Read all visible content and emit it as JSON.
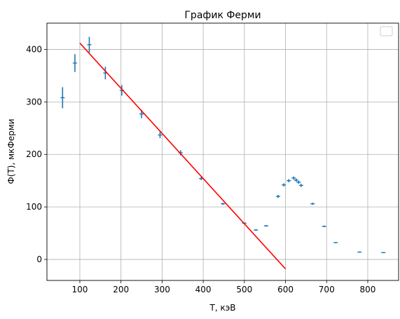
{
  "chart_data": {
    "type": "scatter",
    "title": "График Ферми",
    "xlabel": "T, кэВ",
    "ylabel": "Ф(T), мкФерми",
    "xlim": [
      20,
      875
    ],
    "ylim": [
      -40,
      450
    ],
    "xticks": [
      100,
      200,
      300,
      400,
      500,
      600,
      700,
      800
    ],
    "yticks": [
      0,
      100,
      200,
      300,
      400
    ],
    "grid": true,
    "legend": {
      "placement": "top-right",
      "entries": []
    },
    "series": [
      {
        "kind": "errorbar",
        "color": "#1f77b4",
        "points": [
          {
            "x": 58,
            "y": 308,
            "yerr": 20
          },
          {
            "x": 88,
            "y": 374,
            "yerr": 17
          },
          {
            "x": 123,
            "y": 409,
            "yerr": 15
          },
          {
            "x": 162,
            "y": 355,
            "yerr": 12
          },
          {
            "x": 202,
            "y": 322,
            "yerr": 10
          },
          {
            "x": 250,
            "y": 277,
            "yerr": 8
          },
          {
            "x": 295,
            "y": 237,
            "yerr": 6
          },
          {
            "x": 345,
            "y": 203,
            "yerr": 5
          },
          {
            "x": 395,
            "y": 154,
            "yerr": 3
          },
          {
            "x": 448,
            "y": 106,
            "yerr": 2
          },
          {
            "x": 500,
            "y": 69,
            "yerr": 1.5
          },
          {
            "x": 528,
            "y": 56,
            "yerr": 1.5
          },
          {
            "x": 553,
            "y": 64,
            "yerr": 1.5
          },
          {
            "x": 582,
            "y": 120,
            "yerr": 3
          },
          {
            "x": 596,
            "y": 142,
            "yerr": 3
          },
          {
            "x": 608,
            "y": 150,
            "yerr": 3
          },
          {
            "x": 620,
            "y": 155,
            "yerr": 3
          },
          {
            "x": 626,
            "y": 151,
            "yerr": 3
          },
          {
            "x": 632,
            "y": 147,
            "yerr": 3
          },
          {
            "x": 638,
            "y": 141,
            "yerr": 3
          },
          {
            "x": 666,
            "y": 106,
            "yerr": 2
          },
          {
            "x": 694,
            "y": 63,
            "yerr": 1.5
          },
          {
            "x": 722,
            "y": 32,
            "yerr": 1
          },
          {
            "x": 780,
            "y": 14,
            "yerr": 1
          },
          {
            "x": 838,
            "y": 13,
            "yerr": 1
          }
        ]
      },
      {
        "kind": "line",
        "color": "#ff0000",
        "x": [
          100,
          600
        ],
        "y": [
          412,
          -18
        ]
      }
    ]
  }
}
